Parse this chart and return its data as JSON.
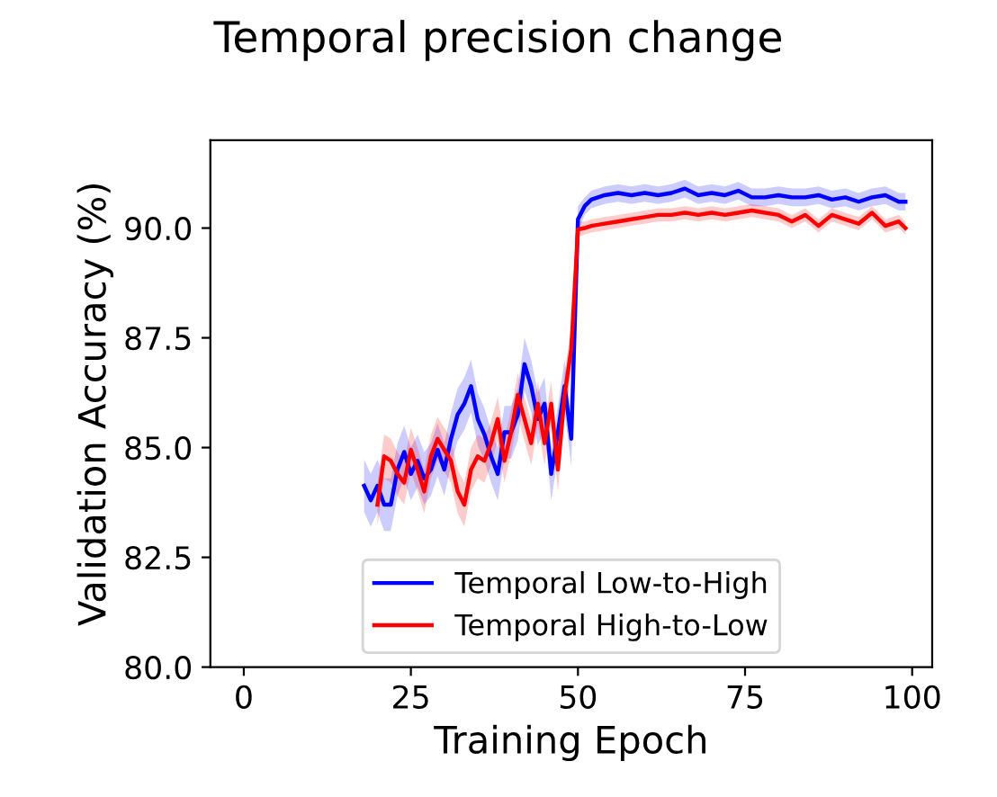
{
  "chart_data": {
    "type": "line",
    "title": "Temporal precision change",
    "xlabel": "Training Epoch",
    "ylabel": "Validation Accuracy (%)",
    "x": [
      18,
      19,
      20,
      21,
      22,
      23,
      24,
      25,
      26,
      27,
      28,
      29,
      30,
      31,
      32,
      33,
      34,
      35,
      36,
      37,
      38,
      39,
      40,
      41,
      42,
      43,
      44,
      45,
      46,
      47,
      48,
      49,
      50,
      51,
      52,
      54,
      56,
      58,
      60,
      62,
      64,
      66,
      68,
      70,
      72,
      74,
      76,
      78,
      80,
      82,
      84,
      86,
      88,
      90,
      92,
      94,
      96,
      98,
      99
    ],
    "series": [
      {
        "name": "Temporal Low-to-High",
        "color": "#0000ff",
        "values": [
          84.13,
          83.8,
          84.13,
          83.7,
          83.7,
          84.5,
          84.9,
          84.4,
          84.7,
          84.3,
          84.5,
          84.95,
          84.5,
          85.2,
          85.75,
          86.0,
          86.4,
          85.65,
          85.3,
          84.8,
          84.4,
          85.35,
          85.35,
          85.75,
          86.9,
          86.4,
          85.65,
          86.0,
          84.4,
          85.35,
          86.4,
          85.2,
          90.2,
          90.5,
          90.65,
          90.75,
          90.8,
          90.75,
          90.8,
          90.75,
          90.8,
          90.9,
          90.75,
          90.8,
          90.75,
          90.85,
          90.7,
          90.7,
          90.75,
          90.7,
          90.7,
          90.75,
          90.65,
          90.7,
          90.6,
          90.7,
          90.75,
          90.6,
          90.6
        ],
        "lower": [
          83.53,
          83.2,
          83.53,
          83.1,
          83.1,
          83.9,
          84.3,
          83.8,
          84.1,
          83.7,
          83.9,
          84.35,
          83.9,
          84.6,
          85.15,
          85.4,
          85.8,
          85.05,
          84.7,
          84.2,
          83.8,
          84.75,
          84.75,
          85.15,
          86.3,
          85.8,
          85.05,
          85.4,
          83.8,
          84.75,
          85.8,
          84.6,
          89.9,
          90.3,
          90.45,
          90.55,
          90.6,
          90.55,
          90.6,
          90.55,
          90.6,
          90.7,
          90.55,
          90.6,
          90.55,
          90.65,
          90.5,
          90.5,
          90.55,
          90.5,
          90.5,
          90.55,
          90.45,
          90.5,
          90.4,
          90.5,
          90.55,
          90.4,
          90.4
        ],
        "upper": [
          84.73,
          84.4,
          84.73,
          84.3,
          84.3,
          85.1,
          85.5,
          85.0,
          85.3,
          84.9,
          85.1,
          85.55,
          85.1,
          85.8,
          86.35,
          86.6,
          87.0,
          86.25,
          85.9,
          85.4,
          85.0,
          85.95,
          85.95,
          86.35,
          87.5,
          87.0,
          86.25,
          86.6,
          85.0,
          85.95,
          87.0,
          85.8,
          90.5,
          90.7,
          90.85,
          90.95,
          91.0,
          90.95,
          91.0,
          90.95,
          91.0,
          91.1,
          90.95,
          91.0,
          90.95,
          91.05,
          90.9,
          90.9,
          90.95,
          90.9,
          90.9,
          90.95,
          90.85,
          90.9,
          90.8,
          90.9,
          90.95,
          90.8,
          90.8
        ]
      },
      {
        "name": "Temporal High-to-Low",
        "color": "#ff0000",
        "values": [
          null,
          null,
          83.7,
          84.8,
          84.7,
          84.4,
          84.2,
          84.95,
          84.5,
          84.0,
          84.8,
          85.2,
          84.95,
          84.7,
          84.0,
          83.7,
          84.5,
          84.8,
          84.7,
          85.1,
          85.65,
          84.7,
          85.35,
          86.2,
          85.65,
          85.1,
          86.0,
          85.1,
          86.0,
          84.5,
          86.2,
          87.25,
          89.97,
          90.0,
          90.05,
          90.1,
          90.15,
          90.2,
          90.25,
          90.3,
          90.3,
          90.35,
          90.3,
          90.35,
          90.3,
          90.35,
          90.4,
          90.35,
          90.3,
          90.15,
          90.3,
          90.05,
          90.3,
          90.2,
          90.1,
          90.35,
          90.05,
          90.15,
          90.0
        ],
        "lower": [
          null,
          null,
          83.2,
          84.3,
          84.2,
          83.9,
          83.7,
          84.45,
          84.0,
          83.5,
          84.3,
          84.7,
          84.45,
          84.2,
          83.5,
          83.2,
          84.0,
          84.3,
          84.2,
          84.6,
          85.15,
          84.2,
          84.85,
          85.7,
          85.15,
          84.6,
          85.5,
          84.6,
          85.5,
          84.0,
          85.7,
          86.75,
          89.8,
          89.85,
          89.9,
          89.95,
          90.0,
          90.05,
          90.1,
          90.15,
          90.15,
          90.2,
          90.15,
          90.2,
          90.15,
          90.2,
          90.25,
          90.2,
          90.15,
          90.0,
          90.15,
          89.9,
          90.15,
          90.05,
          89.95,
          90.2,
          89.9,
          90.0,
          89.85
        ],
        "upper": [
          null,
          null,
          84.2,
          85.3,
          85.2,
          84.9,
          84.7,
          85.45,
          85.0,
          84.5,
          85.3,
          85.7,
          85.45,
          85.2,
          84.5,
          84.2,
          85.0,
          85.3,
          85.2,
          85.6,
          86.15,
          85.2,
          85.85,
          86.7,
          86.15,
          85.6,
          86.5,
          85.6,
          86.5,
          85.0,
          86.7,
          87.75,
          90.15,
          90.15,
          90.2,
          90.25,
          90.3,
          90.35,
          90.4,
          90.45,
          90.45,
          90.5,
          90.45,
          90.5,
          90.45,
          90.5,
          90.55,
          90.5,
          90.45,
          90.3,
          90.45,
          90.2,
          90.45,
          90.35,
          90.25,
          90.5,
          90.2,
          90.3,
          90.15
        ]
      }
    ],
    "xlim": [
      -5,
      103
    ],
    "xticks": [
      0,
      25,
      50,
      75,
      100
    ],
    "ylim": [
      80,
      92
    ],
    "yticks": [
      {
        "value": 80,
        "label": "80.0"
      },
      {
        "value": 82.5,
        "label": "82.5"
      },
      {
        "value": 85,
        "label": "85.0"
      },
      {
        "value": 87.5,
        "label": "87.5"
      },
      {
        "value": 90,
        "label": "90.0"
      }
    ],
    "legend": "bottom",
    "grid": false,
    "marker": "none",
    "line_style": "solid"
  }
}
